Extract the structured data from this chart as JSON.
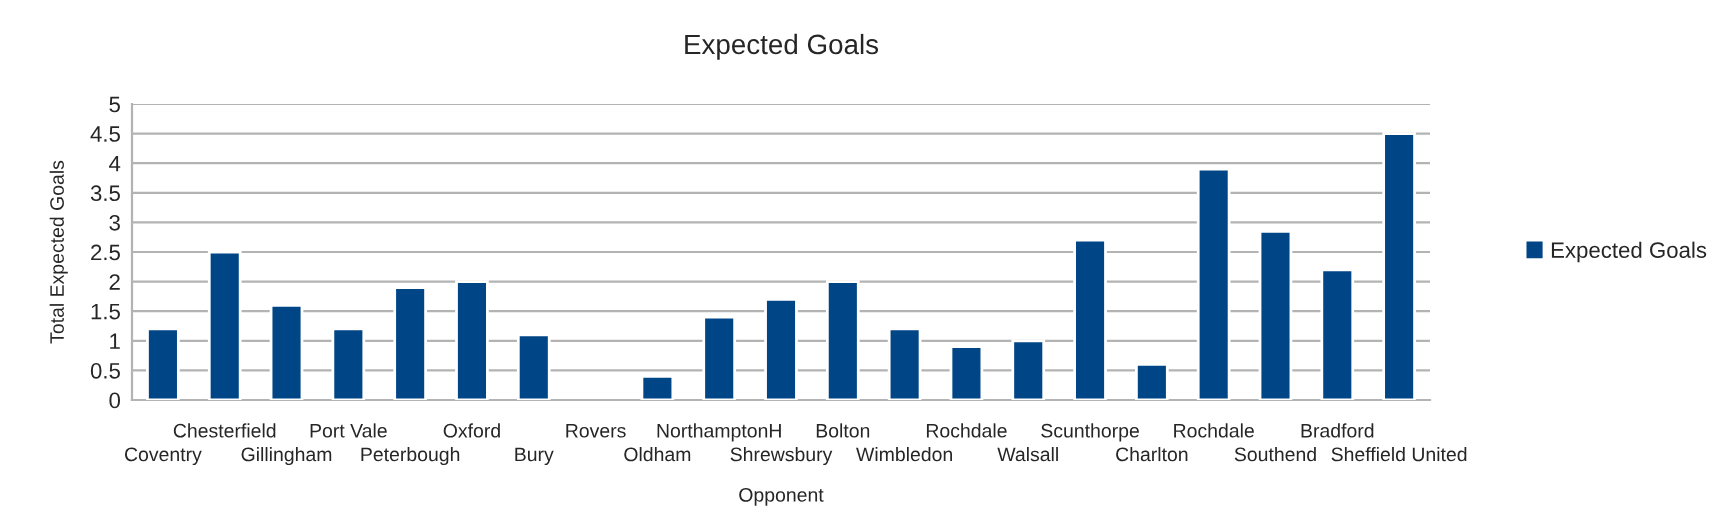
{
  "chart_data": {
    "type": "bar",
    "title": "Expected Goals",
    "xlabel": "Opponent",
    "ylabel": "Total Expected Goals",
    "categories": [
      "Coventry",
      "Chesterfield",
      "Gillingham",
      "Port Vale",
      "Peterbough",
      "Oxford",
      "Bury",
      "Rovers",
      "Oldham",
      "NorthamptonH",
      "Shrewsbury",
      "Bolton",
      "Wimbledon",
      "Rochdale",
      "Walsall",
      "Scunthorpe",
      "Charlton",
      "Rochdale",
      "Southend",
      "Bradford",
      "Sheffield United"
    ],
    "series": [
      {
        "name": "Expected Goals",
        "color": "#004586",
        "values": [
          1.2,
          2.5,
          1.6,
          1.2,
          1.9,
          2.0,
          1.1,
          null,
          0.4,
          1.4,
          1.7,
          2.0,
          1.2,
          0.9,
          1.0,
          2.7,
          0.6,
          3.9,
          2.85,
          2.2,
          4.5
        ]
      }
    ],
    "ylim": [
      0,
      5
    ],
    "yticks": [
      0,
      0.5,
      1,
      1.5,
      2,
      2.5,
      3,
      3.5,
      4,
      4.5,
      5
    ],
    "grid": "y",
    "legend": "right"
  }
}
